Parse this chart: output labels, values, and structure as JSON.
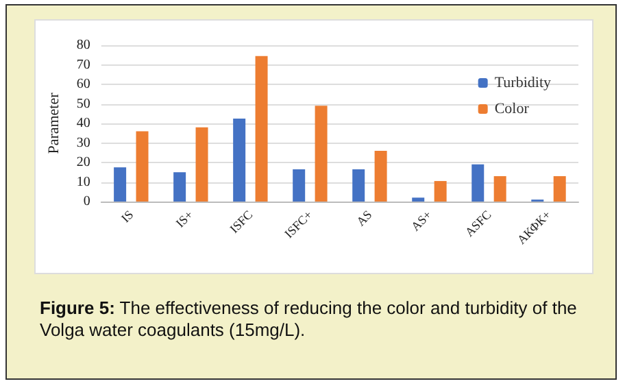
{
  "chart_data": {
    "type": "bar",
    "ylabel": "Parameter",
    "categories": [
      "IS",
      "IS+",
      "ISFC",
      "ISFC+",
      "AS",
      "AS+",
      "ASFC",
      "АКФК+"
    ],
    "series": [
      {
        "name": "Turbidity",
        "color": "#4472c4",
        "values": [
          17.5,
          15,
          42.5,
          16.5,
          16.5,
          2,
          19,
          1
        ]
      },
      {
        "name": "Color",
        "color": "#ed7d31",
        "values": [
          36,
          38,
          74.5,
          49,
          26,
          10.5,
          13,
          13
        ]
      }
    ],
    "ylim": [
      0,
      80
    ],
    "yticks": [
      0,
      10,
      20,
      30,
      40,
      50,
      60,
      70,
      80
    ],
    "grid": "y",
    "legend": "top right",
    "annotations": [
      "Figure 5: The effectiveness of reducing the color and turbidity of the Volga water coagulants (15mg/L)."
    ]
  }
}
